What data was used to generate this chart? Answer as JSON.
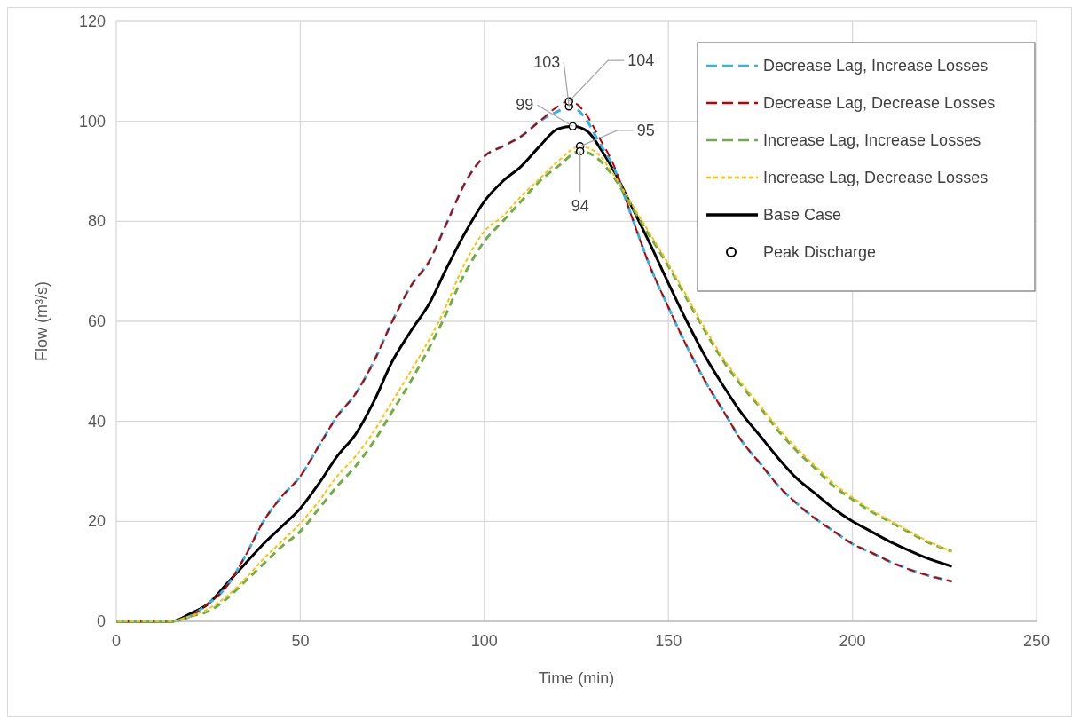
{
  "chart_data": {
    "type": "line",
    "xlabel": "Time (min)",
    "ylabel": "Flow (m³/s)",
    "xlim": [
      0,
      250
    ],
    "xticks": [
      0,
      50,
      100,
      150,
      200,
      250
    ],
    "ylim": [
      0,
      120
    ],
    "yticks": [
      0,
      20,
      40,
      60,
      80,
      100,
      120
    ],
    "grid": true,
    "legend": "top right",
    "series": [
      {
        "name": "Decrease Lag, Increase Losses",
        "color": "#2fb5e8",
        "line_style": "dashed",
        "x": [
          0,
          15,
          20,
          24,
          30,
          35,
          40,
          45,
          50,
          55,
          60,
          65,
          70,
          75,
          80,
          85,
          90,
          95,
          100,
          105,
          110,
          115,
          120,
          123,
          125,
          128,
          131,
          135,
          140,
          145,
          150,
          155,
          160,
          165,
          170,
          175,
          180,
          185,
          190,
          195,
          200,
          205,
          210,
          215,
          220,
          227
        ],
        "values": [
          0,
          0,
          1,
          3,
          7,
          13,
          20,
          25,
          29,
          35,
          41,
          45.5,
          52,
          60,
          67,
          72,
          80,
          88,
          93,
          95,
          97,
          100,
          102,
          103,
          102.5,
          100,
          96,
          91,
          81,
          71,
          62.8,
          55,
          48,
          42,
          36,
          31.5,
          27,
          23.5,
          20.5,
          18,
          15.5,
          13.8,
          12,
          10.5,
          9.3,
          8
        ]
      },
      {
        "name": "Decrease Lag, Decrease Losses",
        "color": "#c00000",
        "line_style": "dashed",
        "x": [
          0,
          15,
          20,
          24,
          30,
          35,
          40,
          45,
          50,
          55,
          60,
          65,
          70,
          75,
          80,
          85,
          90,
          95,
          100,
          105,
          110,
          115,
          120,
          123,
          125,
          128,
          131,
          135,
          140,
          145,
          150,
          155,
          160,
          165,
          170,
          175,
          180,
          185,
          190,
          195,
          200,
          205,
          210,
          215,
          220,
          227
        ],
        "values": [
          0,
          0,
          1,
          3,
          7,
          13,
          20,
          25,
          29,
          35,
          41,
          45.5,
          52,
          60,
          67,
          72,
          80,
          88,
          93,
          95,
          97,
          100,
          103,
          104,
          103.5,
          101,
          97,
          91.5,
          81,
          71,
          62.8,
          55,
          48,
          42,
          36,
          31.5,
          27,
          23.5,
          20.5,
          18,
          15.5,
          13.8,
          12,
          10.5,
          9.3,
          8
        ]
      },
      {
        "name": "Increase Lag, Increase Losses",
        "color": "#70ad47",
        "line_style": "dashed",
        "x": [
          0,
          15,
          20,
          25,
          30,
          35,
          40,
          45,
          50,
          55,
          60,
          65,
          70,
          75,
          80,
          88,
          95,
          100,
          105,
          110,
          115,
          120,
          126,
          130,
          135,
          140,
          145,
          150,
          155,
          160,
          165,
          170,
          175,
          180,
          185,
          190,
          195,
          200,
          205,
          210,
          215,
          220,
          227
        ],
        "values": [
          0,
          0,
          1,
          2,
          4.5,
          8,
          11.5,
          15,
          18,
          22.5,
          27,
          31,
          36,
          42,
          48,
          59,
          70,
          76,
          80,
          84,
          88,
          91,
          94,
          93,
          89,
          83,
          77,
          71,
          64.5,
          58,
          52,
          47,
          42.7,
          38,
          34,
          30.5,
          27,
          24.4,
          22,
          20,
          18,
          16,
          14
        ]
      },
      {
        "name": "Increase Lag, Decrease Losses",
        "color": "#ffc000",
        "line_style": "dotted",
        "x": [
          0,
          15,
          20,
          25,
          30,
          35,
          40,
          45,
          50,
          55,
          60,
          65,
          70,
          75,
          80,
          88,
          95,
          100,
          105,
          110,
          115,
          120,
          126,
          130,
          135,
          140,
          145,
          150,
          155,
          160,
          165,
          170,
          175,
          180,
          185,
          190,
          195,
          200,
          205,
          210,
          215,
          220,
          227
        ],
        "values": [
          0,
          0,
          1,
          2.5,
          5,
          8.5,
          12.5,
          16,
          19.6,
          24,
          29,
          33,
          38,
          44,
          50,
          60.5,
          72,
          78,
          81,
          85,
          88.5,
          92,
          95,
          94,
          89.5,
          83.5,
          77.5,
          71.5,
          65,
          58.5,
          52.5,
          47.5,
          43,
          38.5,
          34.5,
          31,
          27.5,
          24.8,
          22.3,
          20.2,
          18.2,
          16.2,
          14
        ]
      },
      {
        "name": "Base Case",
        "color": "#000000",
        "line_style": "solid",
        "x": [
          0,
          15,
          20,
          25,
          30,
          35,
          40,
          45,
          50,
          55,
          60,
          65,
          70,
          75,
          80,
          85,
          90,
          95,
          100,
          105,
          110,
          115,
          120,
          124,
          128,
          132,
          136,
          140,
          145,
          150,
          155,
          160,
          165,
          170,
          175,
          180,
          185,
          190,
          195,
          200,
          205,
          210,
          215,
          220,
          227
        ],
        "values": [
          0,
          0,
          1.5,
          3.5,
          7.5,
          11.5,
          15.5,
          19,
          22.6,
          27.5,
          33,
          37.4,
          44,
          52,
          58,
          63.5,
          71,
          78,
          84,
          88,
          91,
          95,
          98.5,
          99,
          98,
          94,
          89,
          83,
          75.5,
          67.6,
          60,
          53,
          47,
          41.5,
          37,
          32.5,
          28.5,
          25.5,
          22.5,
          20,
          18,
          16,
          14.3,
          12.7,
          11
        ]
      },
      {
        "name": "Peak Discharge",
        "type": "scatter",
        "marker": "circle",
        "color": "#000000",
        "x": [
          123,
          123,
          124,
          126,
          126
        ],
        "values": [
          103,
          104,
          99,
          95,
          94
        ]
      }
    ],
    "annotations": [
      {
        "text": "103",
        "x": 123,
        "y": 103
      },
      {
        "text": "104",
        "x": 123,
        "y": 104
      },
      {
        "text": "99",
        "x": 124,
        "y": 99
      },
      {
        "text": "95",
        "x": 126,
        "y": 95
      },
      {
        "text": "94",
        "x": 126,
        "y": 94
      }
    ]
  }
}
